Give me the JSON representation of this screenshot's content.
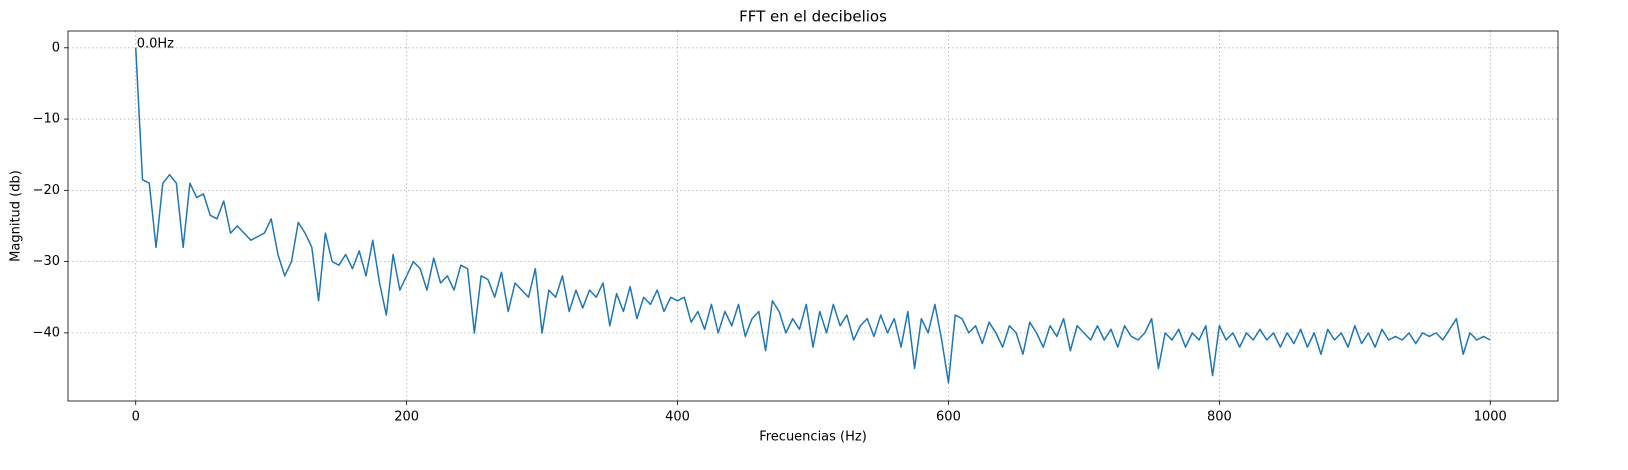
{
  "chart_data": {
    "type": "line",
    "title": "FFT en el decibelios",
    "x_label": "Frecuencias (Hz)",
    "y_label": "Magnitud (db)",
    "color": "#1f77b4",
    "grid": true,
    "annotation": {
      "text": "0.0Hz",
      "x": 0,
      "y": 0
    },
    "xlim": [
      -50,
      1050
    ],
    "ylim": [
      -49.56,
      2.36
    ],
    "xticks": [
      0,
      200,
      400,
      600,
      800,
      1000
    ],
    "yticks": [
      {
        "value": -40,
        "label": "−40"
      },
      {
        "value": -30,
        "label": "−30"
      },
      {
        "value": -20,
        "label": "−20"
      },
      {
        "value": -10,
        "label": "−10"
      },
      0
    ],
    "x": [
      0,
      5,
      10,
      15,
      20,
      25,
      30,
      35,
      40,
      45,
      50,
      55,
      60,
      65,
      70,
      75,
      80,
      85,
      90,
      95,
      100,
      105,
      110,
      115,
      120,
      125,
      130,
      135,
      140,
      145,
      150,
      155,
      160,
      165,
      170,
      175,
      180,
      185,
      190,
      195,
      200,
      205,
      210,
      215,
      220,
      225,
      230,
      235,
      240,
      245,
      250,
      255,
      260,
      265,
      270,
      275,
      280,
      285,
      290,
      295,
      300,
      305,
      310,
      315,
      320,
      325,
      330,
      335,
      340,
      345,
      350,
      355,
      360,
      365,
      370,
      375,
      380,
      385,
      390,
      395,
      400,
      405,
      410,
      415,
      420,
      425,
      430,
      435,
      440,
      445,
      450,
      455,
      460,
      465,
      470,
      475,
      480,
      485,
      490,
      495,
      500,
      505,
      510,
      515,
      520,
      525,
      530,
      535,
      540,
      545,
      550,
      555,
      560,
      565,
      570,
      575,
      580,
      585,
      590,
      595,
      600,
      605,
      610,
      615,
      620,
      625,
      630,
      635,
      640,
      645,
      650,
      655,
      660,
      665,
      670,
      675,
      680,
      685,
      690,
      695,
      700,
      705,
      710,
      715,
      720,
      725,
      730,
      735,
      740,
      745,
      750,
      755,
      760,
      765,
      770,
      775,
      780,
      785,
      790,
      795,
      800,
      805,
      810,
      815,
      820,
      825,
      830,
      835,
      840,
      845,
      850,
      855,
      860,
      865,
      870,
      875,
      880,
      885,
      890,
      895,
      900,
      905,
      910,
      915,
      920,
      925,
      930,
      935,
      940,
      945,
      950,
      955,
      960,
      965,
      970,
      975,
      980,
      985,
      990,
      995,
      1000
    ],
    "values": [
      0,
      -18.5,
      -19,
      -28,
      -19,
      -17.8,
      -19,
      -28,
      -19,
      -21,
      -20.5,
      -23.5,
      -24,
      -21.5,
      -26,
      -25,
      -26,
      -27,
      -26.5,
      -26,
      -24,
      -29,
      -32,
      -30,
      -24.5,
      -26,
      -28,
      -35.5,
      -26,
      -30,
      -30.5,
      -29,
      -31,
      -28.5,
      -32,
      -27,
      -33,
      -37.5,
      -29,
      -34,
      -32,
      -30,
      -31,
      -34,
      -29.5,
      -33,
      -32,
      -34,
      -30.5,
      -31,
      -40,
      -32,
      -32.5,
      -35,
      -31.5,
      -37,
      -33,
      -34,
      -35,
      -31,
      -40,
      -34,
      -35,
      -32,
      -37,
      -34,
      -36.5,
      -34,
      -35,
      -33,
      -39,
      -34.5,
      -37,
      -33.5,
      -38,
      -35,
      -36,
      -34,
      -37,
      -35,
      -35.5,
      -35,
      -38.5,
      -37,
      -39.5,
      -36,
      -40,
      -37,
      -39,
      -36,
      -40.5,
      -38,
      -37,
      -42.5,
      -35.5,
      -37,
      -40,
      -38,
      -39.5,
      -36,
      -42,
      -37,
      -40,
      -36,
      -39,
      -37.5,
      -41,
      -39,
      -38,
      -40.5,
      -37.5,
      -40,
      -38,
      -42,
      -37,
      -45,
      -38,
      -40,
      -36,
      -41,
      -47,
      -37.5,
      -38,
      -40,
      -39,
      -41.5,
      -38.5,
      -40,
      -42,
      -39,
      -40,
      -43,
      -38.5,
      -40,
      -42,
      -39,
      -40.5,
      -38,
      -42.5,
      -39,
      -40,
      -41,
      -39,
      -41,
      -39.5,
      -42,
      -39,
      -40.5,
      -41,
      -40,
      -38,
      -45,
      -40,
      -41,
      -39.5,
      -42,
      -40,
      -41,
      -39,
      -46,
      -39,
      -41,
      -40,
      -42,
      -40,
      -41,
      -39.5,
      -41,
      -40,
      -42,
      -40,
      -41.5,
      -39.5,
      -42,
      -40,
      -43,
      -39.5,
      -41,
      -40,
      -42,
      -39,
      -41.5,
      -40,
      -42,
      -39.5,
      -41,
      -40.5,
      -41,
      -40,
      -41.5,
      -40,
      -40.5,
      -40,
      -41,
      -39.5,
      -38,
      -43,
      -40,
      -41,
      -40.5,
      -41
    ]
  }
}
